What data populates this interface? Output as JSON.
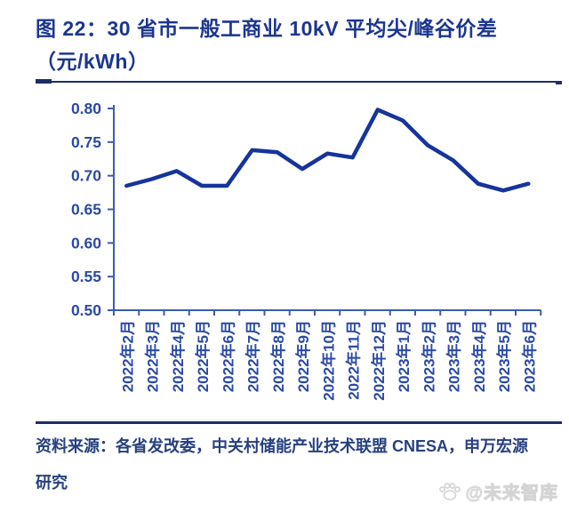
{
  "figure": {
    "title_line1": "图 22：30 省市一般工商业 10kV 平均尖/峰谷价差",
    "title_line2": "（元/kWh）"
  },
  "chart_data": {
    "type": "line",
    "title": "30 省市一般工商业 10kV 平均尖/峰谷价差（元/kWh）",
    "categories": [
      "2022年2月",
      "2022年3月",
      "2022年4月",
      "2022年5月",
      "2022年6月",
      "2022年7月",
      "2022年8月",
      "2022年9月",
      "2022年10月",
      "2022年11月",
      "2022年12月",
      "2023年1月",
      "2023年2月",
      "2023年3月",
      "2023年4月",
      "2023年5月",
      "2023年6月"
    ],
    "values": [
      0.685,
      0.695,
      0.707,
      0.685,
      0.685,
      0.738,
      0.735,
      0.71,
      0.733,
      0.727,
      0.798,
      0.782,
      0.745,
      0.723,
      0.688,
      0.678,
      0.688
    ],
    "xlabel": "",
    "ylabel": "",
    "ylim": [
      0.5,
      0.8
    ],
    "ytick_labels": [
      "0.80",
      "0.75",
      "0.70",
      "0.65",
      "0.60",
      "0.55",
      "0.50"
    ],
    "grid": false,
    "legend_position": "none"
  },
  "footer": {
    "source_text": "资料来源：各省发改委，中关村储能产业技术联盟 CNESA，申万宏源研究"
  },
  "watermark": {
    "text": "@未来智库",
    "icon": "paw-icon"
  },
  "colors": {
    "line": "#16349c",
    "axis": "#3c5cad",
    "tick_label": "#2b4aa4",
    "title": "#1c3690",
    "divider": "#1b2f66",
    "footer_text": "#27407f",
    "watermark": "#d4d4d4"
  }
}
